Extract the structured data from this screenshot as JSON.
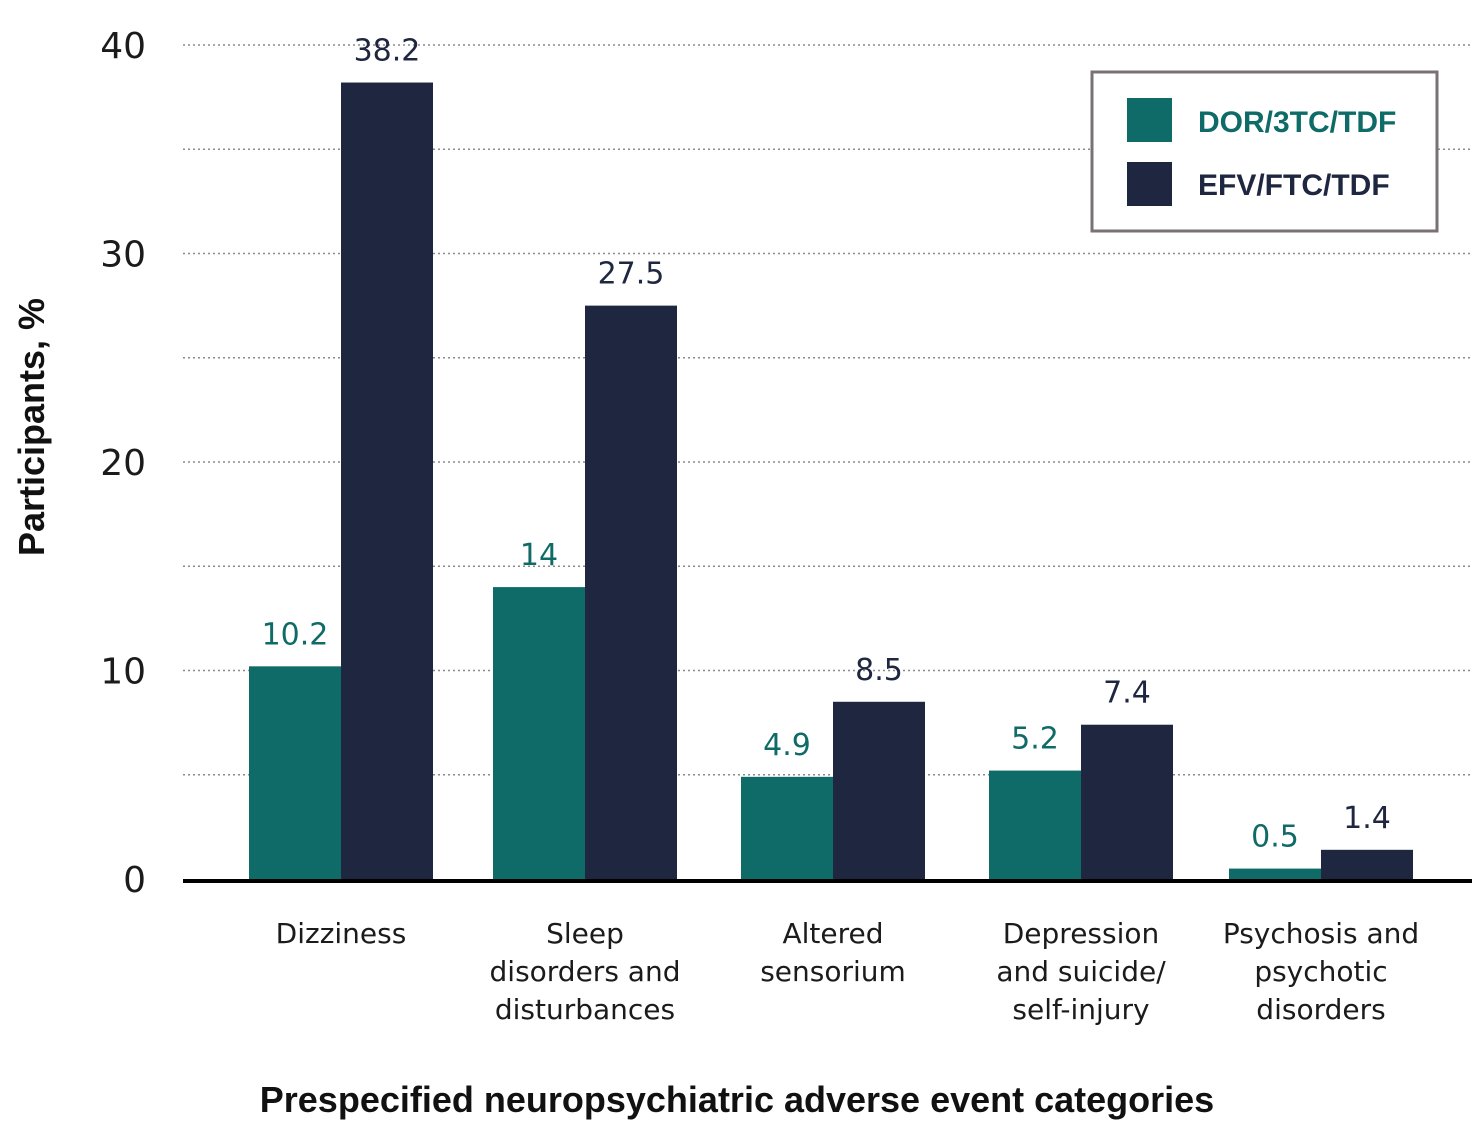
{
  "chart_data": {
    "type": "bar",
    "title": "",
    "xlabel": "Prespecified neuropsychiatric adverse event categories",
    "ylabel": "Participants, %",
    "ylim": [
      0,
      40
    ],
    "yticks": [
      0,
      10,
      20,
      30,
      40
    ],
    "grid": true,
    "legend_position": "top-right",
    "categories": [
      [
        "Dizziness"
      ],
      [
        "Sleep",
        "disorders and",
        "disturbances"
      ],
      [
        "Altered",
        "sensorium"
      ],
      [
        "Depression",
        "and suicide/",
        "self-injury"
      ],
      [
        "Psychosis and",
        "psychotic",
        "disorders"
      ]
    ],
    "series": [
      {
        "name": "DOR/3TC/TDF",
        "color": "#0f6b67",
        "values": [
          10.2,
          14,
          4.9,
          5.2,
          0.5
        ],
        "labels": [
          "10.2",
          "14",
          "4.9",
          "5.2",
          "0.5"
        ]
      },
      {
        "name": "EFV/FTC/TDF",
        "color": "#1f2640",
        "values": [
          38.2,
          27.5,
          8.5,
          7.4,
          1.4
        ],
        "labels": [
          "38.2",
          "27.5",
          "8.5",
          "7.4",
          "1.4"
        ]
      }
    ]
  }
}
